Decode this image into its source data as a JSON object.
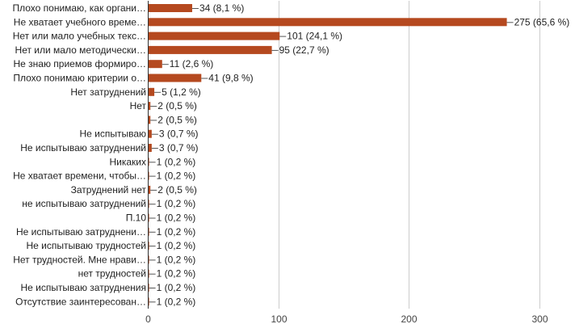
{
  "chart_data": {
    "type": "bar",
    "orientation": "horizontal",
    "title": "",
    "xlabel": "",
    "ylabel": "",
    "xlim": [
      0,
      300
    ],
    "ticks": [
      0,
      100,
      200,
      300
    ],
    "grid": true,
    "bar_color": "#b5491f",
    "categories": [
      "Плохо понимаю, как органи…",
      "Не хватает учебного време…",
      "Нет или мало учебных текс…",
      "Нет или мало методически…",
      "Не знаю приемов формиро…",
      "Плохо понимаю критерии о…",
      "Нет затруднений",
      "Нет",
      "",
      "Не испытываю",
      "Не испытываю затруднений",
      "Никаких",
      "Не хватает времени, чтобы…",
      "Затруднений нет",
      "не испытываю затруднений",
      "П.10",
      "Не испытываю затруднени…",
      "Не испытываю трудностей",
      "Нет трудностей. Мне нрави…",
      "нет трудностей",
      "Не испытываю затруднения",
      "Отсутствие заинтересован…"
    ],
    "values": [
      34,
      275,
      101,
      95,
      11,
      41,
      5,
      2,
      2,
      3,
      3,
      1,
      1,
      2,
      1,
      1,
      1,
      1,
      1,
      1,
      1,
      1
    ],
    "value_labels": [
      "34 (8,1 %)",
      "275 (65,6 %)",
      "101 (24,1 %)",
      "95 (22,7 %)",
      "11 (2,6 %)",
      "41 (9,8 %)",
      "5 (1,2 %)",
      "2 (0,5 %)",
      "2 (0,5 %)",
      "3 (0,7 %)",
      "3 (0,7 %)",
      "1 (0,2 %)",
      "1 (0,2 %)",
      "2 (0,5 %)",
      "1 (0,2 %)",
      "1 (0,2 %)",
      "1 (0,2 %)",
      "1 (0,2 %)",
      "1 (0,2 %)",
      "1 (0,2 %)",
      "1 (0,2 %)",
      "1 (0,2 %)"
    ]
  }
}
